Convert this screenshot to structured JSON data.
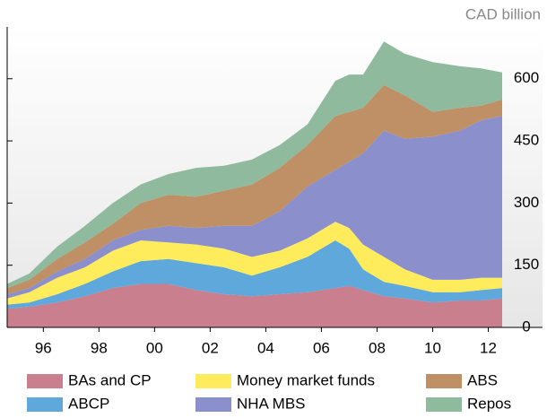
{
  "chart_data": {
    "type": "stacked-area",
    "unit": "CAD billion",
    "x": [
      1995.2,
      1996,
      1997,
      1998,
      1999,
      2000,
      2001,
      2002,
      2003,
      2004,
      2005,
      2006,
      2007,
      2007.5,
      2008,
      2008.75,
      2009.5,
      2010.5,
      2011.5,
      2012.25,
      2013
    ],
    "series": [
      {
        "name": "BAs and CP",
        "color": "#c97f8e",
        "values": [
          45,
          50,
          60,
          75,
          95,
          105,
          105,
          90,
          80,
          75,
          80,
          85,
          95,
          100,
          90,
          75,
          70,
          60,
          65,
          65,
          70
        ]
      },
      {
        "name": "ABCP",
        "color": "#5fa8dc",
        "values": [
          10,
          10,
          20,
          30,
          40,
          55,
          60,
          65,
          65,
          50,
          65,
          85,
          115,
          90,
          50,
          35,
          30,
          25,
          20,
          25,
          25
        ]
      },
      {
        "name": "Money market funds",
        "color": "#ffec5c",
        "values": [
          15,
          25,
          40,
          40,
          50,
          50,
          40,
          45,
          45,
          45,
          40,
          45,
          45,
          50,
          60,
          60,
          40,
          30,
          30,
          30,
          25
        ]
      },
      {
        "name": "NHA MBS",
        "color": "#8b8fcc",
        "values": [
          10,
          10,
          15,
          20,
          25,
          25,
          40,
          40,
          55,
          75,
          95,
          125,
          125,
          160,
          220,
          305,
          315,
          345,
          360,
          380,
          390
        ]
      },
      {
        "name": "ABS",
        "color": "#bf8f66",
        "values": [
          15,
          20,
          30,
          40,
          40,
          65,
          75,
          75,
          85,
          100,
          105,
          100,
          130,
          120,
          110,
          110,
          105,
          60,
          55,
          35,
          40
        ]
      },
      {
        "name": "Repos",
        "color": "#8fba9d",
        "values": [
          10,
          15,
          30,
          40,
          50,
          45,
          50,
          70,
          60,
          60,
          55,
          50,
          85,
          90,
          80,
          105,
          100,
          120,
          100,
          90,
          65
        ]
      }
    ],
    "xlim": [
      1995.2,
      2013
    ],
    "xticks": [
      {
        "value": 1996.5,
        "label": "96"
      },
      {
        "value": 1998.5,
        "label": "98"
      },
      {
        "value": 2000.5,
        "label": "00"
      },
      {
        "value": 2002.5,
        "label": "02"
      },
      {
        "value": 2004.5,
        "label": "04"
      },
      {
        "value": 2006.5,
        "label": "06"
      },
      {
        "value": 2008.5,
        "label": "08"
      },
      {
        "value": 2010.5,
        "label": "10"
      },
      {
        "value": 2012.5,
        "label": "12"
      }
    ],
    "ylim": [
      0,
      725
    ],
    "yticks": [
      0,
      150,
      300,
      450,
      600
    ]
  }
}
